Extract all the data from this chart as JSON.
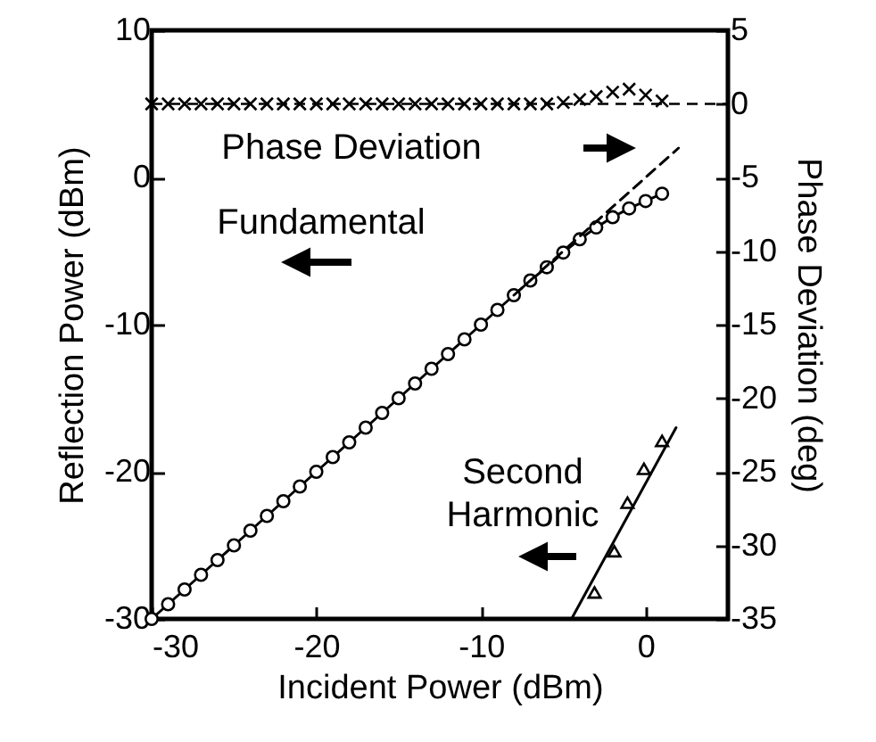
{
  "chart_data": {
    "type": "line",
    "xlabel": "Incident Power (dBm)",
    "ylabel": "Reflection Power (dBm)",
    "y2label": "Phase Deviation (deg)",
    "xlim": [
      -30,
      5
    ],
    "xticks": [
      -30,
      -20,
      -10,
      0
    ],
    "ylim": [
      -30,
      10
    ],
    "yticks": [
      -30,
      -20,
      -10,
      0,
      10
    ],
    "y2lim": [
      -35,
      5
    ],
    "y2ticks": [
      -35,
      -30,
      -25,
      -20,
      -15,
      -10,
      -5,
      0,
      5
    ],
    "grid": false,
    "series": [
      {
        "color": "#000000",
        "marker": "circle",
        "line_style": "solid",
        "x": [
          -30,
          -29,
          -28,
          -27,
          -26,
          -25,
          -24,
          -23,
          -22,
          -21,
          -20,
          -19,
          -18,
          -17,
          -16,
          -15,
          -14,
          -13,
          -12,
          -11,
          -10,
          -9,
          -8,
          -7,
          -6,
          -5,
          -4,
          -3,
          -2,
          -1,
          0,
          1
        ],
        "values": [
          -30,
          -29,
          -28,
          -27,
          -26,
          -25,
          -24,
          -23,
          -22,
          -21,
          -20,
          -19,
          -18,
          -17,
          -16,
          -15,
          -14,
          -13,
          -12,
          -11,
          -10,
          -9,
          -8,
          -7,
          -6.1,
          -5.1,
          -4.2,
          -3.4,
          -2.7,
          -2.1,
          -1.6,
          -1.1
        ]
      },
      {
        "color": "#000000",
        "marker": "none",
        "line_style": "dashed",
        "x": [
          -8,
          2
        ],
        "values": [
          -8,
          2
        ]
      },
      {
        "type": "scatter",
        "color": "#000000",
        "marker": "triangle",
        "x": [
          -3.1,
          -1.9,
          -1.1,
          -0.1,
          1.0
        ],
        "values": [
          -28.2,
          -25.4,
          -22.1,
          -19.8,
          -17.9
        ]
      },
      {
        "color": "#000000",
        "marker": "none",
        "line_style": "solid",
        "x": [
          -4.5,
          1.85
        ],
        "values": [
          -30,
          -17
        ]
      },
      {
        "type": "scatter",
        "color": "#000000",
        "marker": "cross",
        "axis": "y2",
        "x": [
          -30,
          -29,
          -28,
          -27,
          -26,
          -25,
          -24,
          -23,
          -22,
          -21,
          -20,
          -19,
          -18,
          -17,
          -16,
          -15,
          -14,
          -13,
          -12,
          -11,
          -10,
          -9,
          -8,
          -7,
          -6,
          -5,
          -4,
          -3,
          -2,
          -1,
          0,
          1
        ],
        "values": [
          0,
          0,
          0,
          0,
          0,
          0,
          0,
          0,
          0,
          0,
          0,
          0,
          0,
          0,
          0,
          0,
          0,
          0,
          0,
          0,
          0,
          0,
          0,
          0,
          0,
          0.1,
          0.3,
          0.5,
          0.8,
          1.0,
          0.6,
          0.2
        ]
      }
    ],
    "ref_lines": [
      {
        "axis": "y2",
        "value": 0,
        "color": "#000000",
        "line_style": "dashed"
      }
    ],
    "annotations": [
      "Phase Deviation",
      "Fundamental",
      "Second\nHarmonic"
    ]
  }
}
